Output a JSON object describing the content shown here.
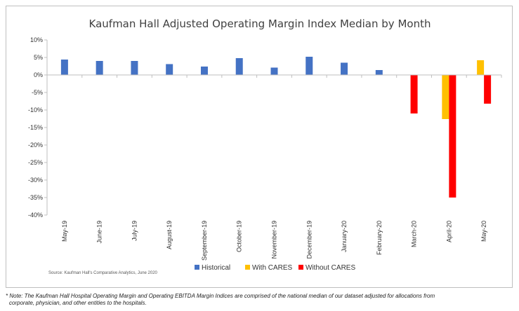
{
  "chart_data": {
    "type": "bar",
    "title": "Kaufman Hall Adjusted Operating Margin Index Median by Month",
    "categories": [
      "May-19",
      "June-19",
      "July-19",
      "August-19",
      "September-19",
      "October-19",
      "November-19",
      "December-19",
      "January-20",
      "February-20",
      "March-20",
      "April-20",
      "May-20"
    ],
    "series": [
      {
        "name": "Historical",
        "color": "#4472C4",
        "values": [
          4.4,
          4.0,
          4.0,
          3.1,
          2.4,
          4.8,
          2.1,
          5.2,
          3.5,
          1.4,
          null,
          null,
          null
        ]
      },
      {
        "name": "With CARES",
        "color": "#FFC000",
        "values": [
          null,
          null,
          null,
          null,
          null,
          null,
          null,
          null,
          null,
          null,
          null,
          -12.6,
          4.2
        ]
      },
      {
        "name": "Without CARES",
        "color": "#FF0000",
        "values": [
          null,
          null,
          null,
          null,
          null,
          null,
          null,
          null,
          null,
          null,
          -11.0,
          -35.0,
          -8.2
        ]
      }
    ],
    "ylim": [
      -40,
      10
    ],
    "yticks": [
      10,
      5,
      0,
      -5,
      -10,
      -15,
      -20,
      -25,
      -30,
      -35,
      -40
    ],
    "ytick_labels": [
      "10%",
      "5%",
      "0%",
      "-5%",
      "-10%",
      "-15%",
      "-20%",
      "-25%",
      "-30%",
      "-35%",
      "-40%"
    ],
    "xlabel": "",
    "ylabel": "",
    "grid": false,
    "legend_position": "bottom",
    "source": "Source: Kaufman Hall's Comparative Analytics, June 2020"
  },
  "footnote": {
    "line1": "* Note: The Kaufman Hall Hospital Operating Margin and Operating EBITDA Margin Indices are comprised of the national median of our dataset adjusted for allocations from",
    "line2": "corporate, physician, and other entities to the hospitals."
  }
}
